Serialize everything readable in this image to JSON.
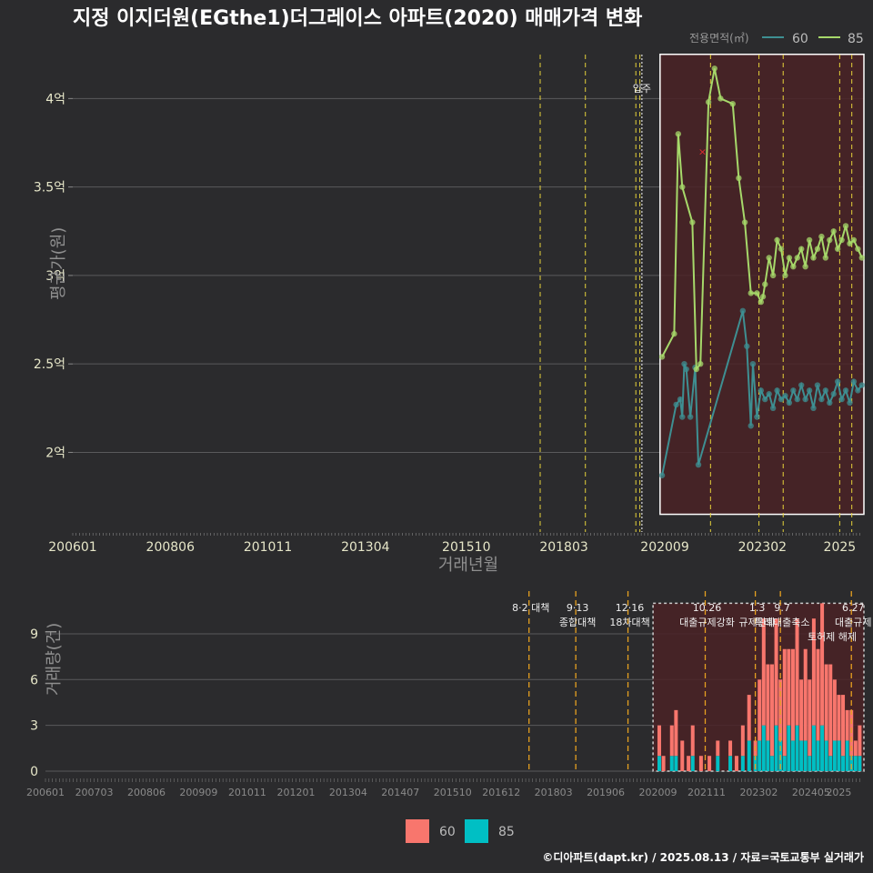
{
  "title": "지정 이지더원(EGthe1)더그레이스 아파트(2020) 매매가격 변화",
  "footer": "©디아파트(dapt.kr) / 2025.08.13 / 자료=국토교통부 실거래가",
  "colors": {
    "s60": "#3e8f92",
    "s85": "#a6d86a",
    "bar60": "#f8766d",
    "bar85": "#00bfc4",
    "highlight": "#4a2226",
    "vline": "#e6d23a",
    "bvline": "#e6a020"
  },
  "chart_data": [
    {
      "type": "line",
      "title": "지정 이지더원(EGthe1)더그레이스 아파트(2020) 매매가격 변화",
      "xlabel": "거래년월",
      "ylabel": "평균가(원)",
      "x_ticks": [
        "200601",
        "200806",
        "201011",
        "201304",
        "201510",
        "201803",
        "202009",
        "202302",
        "2025"
      ],
      "y_ticks": [
        "2억",
        "2.5억",
        "3억",
        "3.5억",
        "4억"
      ],
      "y_tick_values": [
        2.0,
        2.5,
        3.0,
        3.5,
        4.0
      ],
      "ylim": [
        1.55,
        4.3
      ],
      "xlim": [
        2006.0,
        2025.6
      ],
      "legend_title": "전용면적(㎡)",
      "legend_position": "top-right",
      "annotation": "입주",
      "policy_lines": [
        2017.58,
        2018.7,
        2019.95,
        2020.05,
        2021.8,
        2023.0,
        2023.6,
        2025.0,
        2025.3
      ],
      "highlight_range": {
        "x": [
          2020.55,
          2025.6
        ],
        "y": [
          1.65,
          4.25
        ]
      },
      "series": [
        {
          "name": "60",
          "color": "#3e8f92",
          "x": [
            2020.6,
            2020.95,
            2021.05,
            2021.1,
            2021.15,
            2021.2,
            2021.3,
            2021.42,
            2021.5,
            2022.6,
            2022.7,
            2022.8,
            2022.85,
            2022.95,
            2023.05,
            2023.15,
            2023.25,
            2023.35,
            2023.45,
            2023.55,
            2023.65,
            2023.75,
            2023.85,
            2023.95,
            2024.05,
            2024.15,
            2024.25,
            2024.35,
            2024.45,
            2024.55,
            2024.65,
            2024.75,
            2024.85,
            2024.95,
            2025.05,
            2025.15,
            2025.25,
            2025.35,
            2025.45,
            2025.55
          ],
          "y": [
            1.87,
            2.27,
            2.3,
            2.2,
            2.5,
            2.47,
            2.2,
            2.48,
            1.93,
            2.8,
            2.6,
            2.15,
            2.5,
            2.2,
            2.35,
            2.3,
            2.33,
            2.25,
            2.35,
            2.3,
            2.32,
            2.28,
            2.35,
            2.3,
            2.38,
            2.3,
            2.35,
            2.25,
            2.38,
            2.3,
            2.35,
            2.28,
            2.33,
            2.4,
            2.3,
            2.35,
            2.28,
            2.4,
            2.35,
            2.38
          ]
        },
        {
          "name": "85",
          "color": "#a6d86a",
          "x": [
            2020.6,
            2020.9,
            2021.0,
            2021.1,
            2021.35,
            2021.45,
            2021.55,
            2021.75,
            2021.9,
            2022.05,
            2022.35,
            2022.5,
            2022.65,
            2022.8,
            2022.95,
            2023.05,
            2023.1,
            2023.15,
            2023.25,
            2023.35,
            2023.45,
            2023.55,
            2023.65,
            2023.75,
            2023.85,
            2023.95,
            2024.05,
            2024.15,
            2024.25,
            2024.35,
            2024.45,
            2024.55,
            2024.65,
            2024.75,
            2024.85,
            2024.95,
            2025.05,
            2025.15,
            2025.25,
            2025.35,
            2025.45,
            2025.55
          ],
          "y": [
            2.54,
            2.67,
            3.8,
            3.5,
            3.3,
            2.47,
            2.5,
            3.98,
            4.17,
            4.0,
            3.97,
            3.55,
            3.3,
            2.9,
            2.9,
            2.85,
            2.88,
            2.95,
            3.1,
            3.0,
            3.2,
            3.15,
            3.0,
            3.1,
            3.05,
            3.1,
            3.15,
            3.05,
            3.2,
            3.1,
            3.15,
            3.22,
            3.1,
            3.2,
            3.25,
            3.15,
            3.2,
            3.28,
            3.18,
            3.2,
            3.15,
            3.1
          ]
        }
      ]
    },
    {
      "type": "bar",
      "ylabel": "거래량(건)",
      "x_ticks": [
        "200601",
        "200703",
        "200806",
        "200909",
        "201011",
        "201201",
        "201304",
        "201407",
        "201510",
        "201612",
        "201803",
        "201906",
        "202009",
        "202111",
        "202302",
        "202405",
        "2025"
      ],
      "y_ticks": [
        "0",
        "3",
        "6",
        "9"
      ],
      "y_tick_values": [
        0,
        3,
        6,
        9
      ],
      "ylim": [
        0,
        11.5
      ],
      "policy_lines": [
        {
          "x": 2017.58,
          "label": [
            "8·2 대책"
          ]
        },
        {
          "x": 2018.7,
          "label": [
            "9·13",
            "종합대책"
          ]
        },
        {
          "x": 2019.95,
          "label": [
            "12·16",
            "18차대책"
          ]
        },
        {
          "x": 2021.8,
          "label": [
            "10.26",
            "대출규제강화"
          ]
        },
        {
          "x": 2023.0,
          "label": [
            "1.3",
            "규제완화"
          ]
        },
        {
          "x": 2023.6,
          "label": [
            "9.7",
            "특례대출축소"
          ]
        },
        {
          "x": 2025.3,
          "label": [
            "6.27",
            "대출규제"
          ]
        }
      ],
      "annotation_extra": "토허제 해제",
      "highlight_range": {
        "x": [
          2020.55,
          2025.6
        ],
        "y": [
          0,
          11
        ]
      },
      "series": [
        {
          "name": "60",
          "color": "#f8766d",
          "x": [
            2020.7,
            2020.8,
            2021.0,
            2021.1,
            2021.25,
            2021.4,
            2021.5,
            2021.7,
            2021.9,
            2022.1,
            2022.4,
            2022.55,
            2022.7,
            2022.85,
            2023.0,
            2023.1,
            2023.2,
            2023.3,
            2023.4,
            2023.5,
            2023.6,
            2023.7,
            2023.8,
            2023.9,
            2024.0,
            2024.1,
            2024.2,
            2024.3,
            2024.4,
            2024.5,
            2024.6,
            2024.7,
            2024.8,
            2024.9,
            2025.0,
            2025.1,
            2025.2,
            2025.3,
            2025.4,
            2025.5
          ],
          "y": [
            2,
            1,
            2,
            3,
            2,
            1,
            2,
            1,
            1,
            1,
            1,
            1,
            2,
            3,
            1,
            4,
            7,
            5,
            6,
            7,
            4,
            7,
            5,
            6,
            7,
            4,
            6,
            5,
            7,
            6,
            8,
            5,
            6,
            4,
            3,
            4,
            2,
            3,
            1,
            2
          ]
        },
        {
          "name": "85",
          "color": "#00bfc4",
          "x": [
            2020.7,
            2020.8,
            2021.0,
            2021.1,
            2021.25,
            2021.4,
            2021.5,
            2021.7,
            2021.9,
            2022.1,
            2022.4,
            2022.55,
            2022.7,
            2022.85,
            2023.0,
            2023.1,
            2023.2,
            2023.3,
            2023.4,
            2023.5,
            2023.6,
            2023.7,
            2023.8,
            2023.9,
            2024.0,
            2024.1,
            2024.2,
            2024.3,
            2024.4,
            2024.5,
            2024.6,
            2024.7,
            2024.8,
            2024.9,
            2025.0,
            2025.1,
            2025.2,
            2025.3,
            2025.4,
            2025.5
          ],
          "y": [
            1,
            0,
            1,
            1,
            0,
            0,
            1,
            0,
            0,
            1,
            1,
            0,
            1,
            2,
            1,
            2,
            3,
            2,
            1,
            3,
            2,
            1,
            3,
            2,
            3,
            2,
            2,
            1,
            3,
            2,
            3,
            2,
            1,
            2,
            2,
            1,
            2,
            1,
            1,
            1
          ]
        }
      ]
    }
  ]
}
